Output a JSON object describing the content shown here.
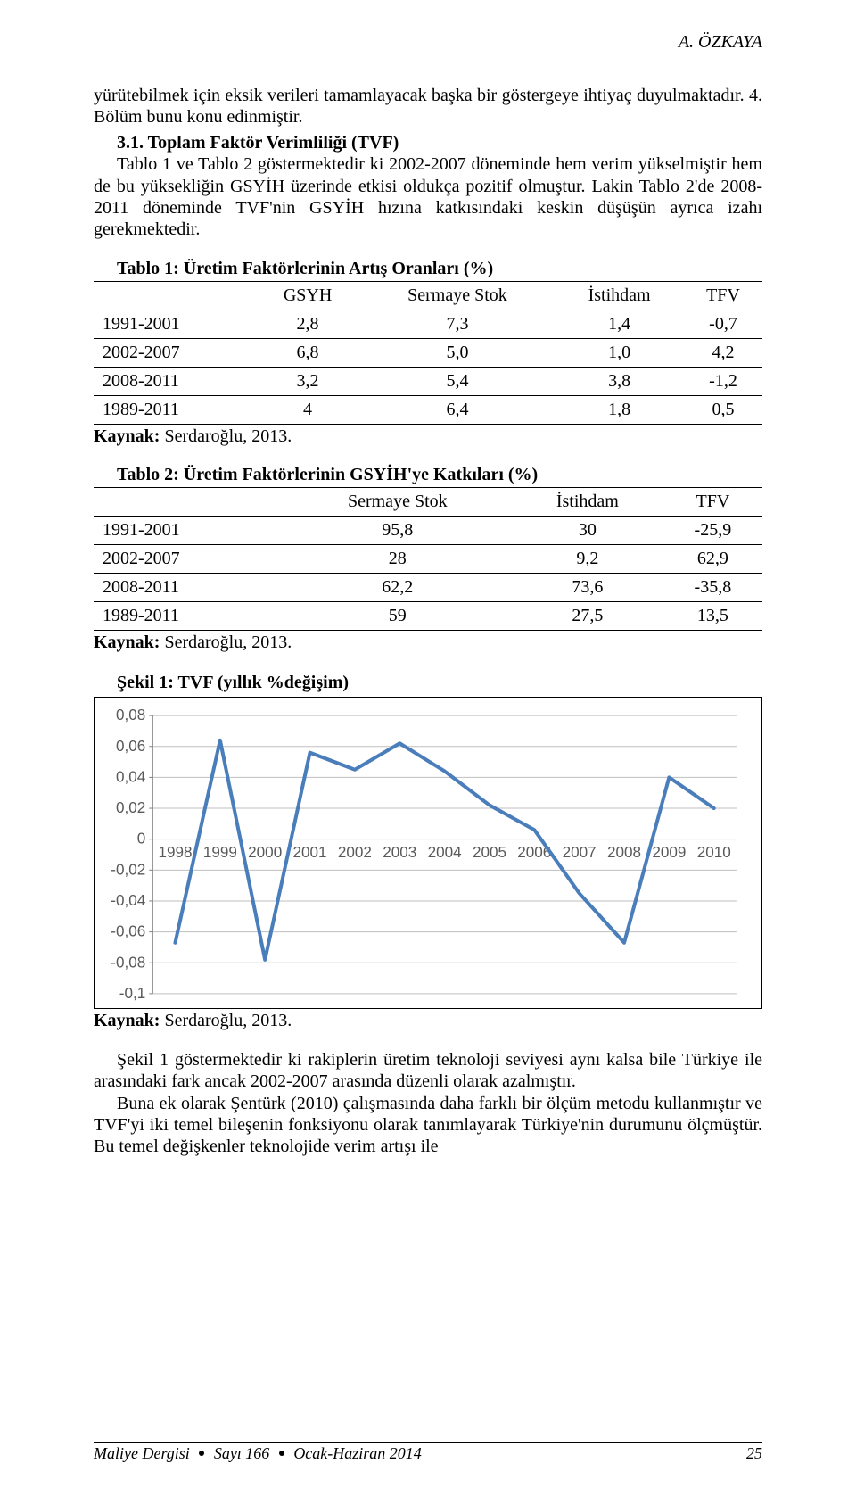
{
  "header": {
    "author": "A. ÖZKAYA"
  },
  "para1": "yürütebilmek için eksik verileri tamamlayacak başka bir göstergeye ihtiyaç duyulmaktadır. 4. Bölüm bunu konu edinmiştir.",
  "section31": {
    "title": "3.1. Toplam Faktör Verimliliği (TVF)",
    "text": "Tablo 1 ve Tablo 2 göstermektedir ki 2002-2007 döneminde hem verim yükselmiştir hem de bu yüksekliğin GSYİH üzerinde etkisi oldukça pozitif olmuştur. Lakin Tablo 2'de 2008-2011 döneminde TVF'nin GSYİH hızına katkısındaki keskin düşüşün ayrıca izahı gerekmektedir."
  },
  "table1": {
    "title": "Tablo 1: Üretim Faktörlerinin Artış Oranları (%)",
    "columns": [
      "",
      "GSYH",
      "Sermaye Stok",
      "İstihdam",
      "TFV"
    ],
    "rows": [
      [
        "1991-2001",
        "2,8",
        "7,3",
        "1,4",
        "-0,7"
      ],
      [
        "2002-2007",
        "6,8",
        "5,0",
        "1,0",
        "4,2"
      ],
      [
        "2008-2011",
        "3,2",
        "5,4",
        "3,8",
        "-1,2"
      ],
      [
        "1989-2011",
        "4",
        "6,4",
        "1,8",
        "0,5"
      ]
    ],
    "source_label": "Kaynak:",
    "source_value": " Serdaroğlu, 2013."
  },
  "table2": {
    "title": "Tablo 2: Üretim Faktörlerinin GSYİH'ye Katkıları (%)",
    "columns": [
      "",
      "Sermaye Stok",
      "İstihdam",
      "TFV"
    ],
    "rows": [
      [
        "1991-2001",
        "95,8",
        "30",
        "-25,9"
      ],
      [
        "2002-2007",
        "28",
        "9,2",
        "62,9"
      ],
      [
        "2008-2011",
        "62,2",
        "73,6",
        "-35,8"
      ],
      [
        "1989-2011",
        "59",
        "27,5",
        "13,5"
      ]
    ],
    "source_label": "Kaynak:",
    "source_value": " Serdaroğlu, 2013."
  },
  "chart": {
    "title": "Şekil 1: TVF (yıllık %değişim)",
    "type": "line",
    "x_labels": [
      "1998",
      "1999",
      "2000",
      "2001",
      "2002",
      "2003",
      "2004",
      "2005",
      "2006",
      "2007",
      "2008",
      "2009",
      "2010"
    ],
    "y_ticks": [
      -0.1,
      -0.08,
      -0.06,
      -0.04,
      -0.02,
      0,
      0.02,
      0.04,
      0.06,
      0.08
    ],
    "y_tick_labels": [
      "-0,1",
      "-0,08",
      "-0,06",
      "-0,04",
      "-0,02",
      "0",
      "0,02",
      "0,04",
      "0,06",
      "0,08"
    ],
    "values": [
      -0.067,
      0.064,
      -0.078,
      0.056,
      0.045,
      0.062,
      0.044,
      0.022,
      0.006,
      -0.035,
      -0.067,
      0.04,
      0.02
    ],
    "line_color": "#4a7ebb",
    "line_width": 4,
    "tick_fontsize": 17,
    "grid_color": "#bfbfbf",
    "axis_color": "#808080",
    "plot_background": "#ffffff",
    "ylim": [
      -0.1,
      0.08
    ],
    "source_label": "Kaynak:",
    "source_value": " Serdaroğlu, 2013."
  },
  "para_after_chart_1": "Şekil 1 göstermektedir ki rakiplerin üretim teknoloji seviyesi aynı kalsa bile Türkiye ile arasındaki fark ancak 2002-2007 arasında düzenli olarak azalmıştır.",
  "para_after_chart_2": "Buna ek olarak Şentürk (2010) çalışmasında daha farklı bir ölçüm metodu kullanmıştır ve TVF'yi iki temel bileşenin fonksiyonu olarak tanımlayarak Türkiye'nin durumunu ölçmüştür. Bu temel değişkenler teknolojide verim artışı ile",
  "footer": {
    "journal": "Maliye Dergisi",
    "issue": "Sayı 166",
    "date": "Ocak-Haziran 2014",
    "page": "25"
  }
}
